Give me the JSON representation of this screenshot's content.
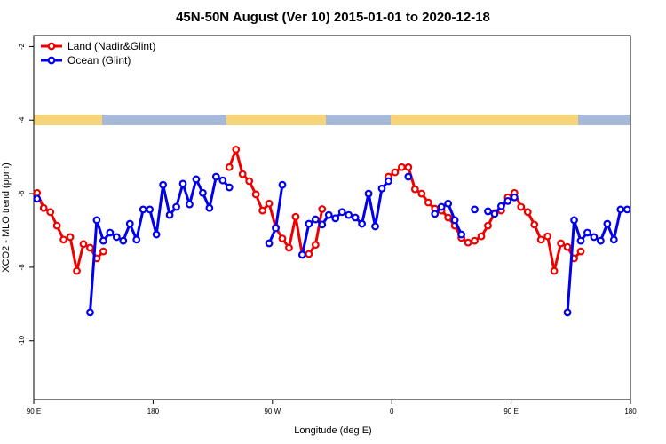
{
  "chart_data": {
    "type": "line",
    "title": "45N-50N August (Ver 10)   2015-01-01 to 2020-12-18",
    "x_label": "Longitude (deg E)",
    "y_label": "XCO2 - MLO trend (ppm)",
    "xlim": [
      90,
      540
    ],
    "xticks": [
      {
        "value": 90,
        "label": "90 E"
      },
      180,
      {
        "value": 270,
        "label": "90 W"
      },
      {
        "value": 360,
        "label": "0"
      },
      {
        "value": 450,
        "label": "90 E"
      },
      {
        "value": 540,
        "label": "180"
      }
    ],
    "ylim": [
      -11.6,
      -1.7
    ],
    "yticks": [
      -2,
      -4,
      -6,
      -8,
      -10
    ],
    "legend": "upper left",
    "x": [
      92.5,
      97.5,
      102.5,
      107.5,
      112.5,
      117.5,
      122.5,
      127.5,
      132.5,
      137.5,
      142.5,
      147.5,
      152.5,
      157.5,
      162.5,
      167.5,
      172.5,
      177.5,
      182.5,
      187.5,
      192.5,
      197.5,
      202.5,
      207.5,
      212.5,
      217.5,
      222.5,
      227.5,
      232.5,
      237.5,
      242.5,
      247.5,
      252.5,
      257.5,
      262.5,
      267.5,
      272.5,
      277.5,
      282.5,
      287.5,
      292.5,
      297.5,
      302.5,
      307.5,
      312.5,
      317.5,
      322.5,
      327.5,
      332.5,
      337.5,
      342.5,
      347.5,
      352.5,
      357.5,
      362.5,
      367.5,
      372.5,
      377.5,
      382.5,
      387.5,
      392.5,
      397.5,
      402.5,
      407.5,
      412.5,
      417.5,
      422.5,
      427.5,
      432.5,
      437.5,
      442.5,
      447.5,
      452.5,
      457.5,
      462.5,
      467.5,
      472.5,
      477.5,
      482.5,
      487.5,
      492.5,
      497.5,
      502.5,
      507.5,
      512.5,
      517.5,
      522.5,
      527.5,
      532.5,
      537.5
    ],
    "series": [
      {
        "name": "Land (Nadir&Glint)",
        "color": "#ee0000",
        "values": [
          -5.98,
          -6.39,
          -6.5,
          -6.87,
          -7.25,
          -7.18,
          -8.1,
          -7.37,
          -7.47,
          -7.76,
          -7.57,
          null,
          null,
          null,
          null,
          null,
          null,
          null,
          null,
          null,
          null,
          null,
          null,
          null,
          null,
          null,
          null,
          null,
          null,
          -5.28,
          -4.8,
          -5.47,
          -5.66,
          -6.02,
          -6.46,
          -6.27,
          -6.92,
          -7.22,
          -7.47,
          -6.63,
          -7.66,
          -7.64,
          -7.39,
          -6.42,
          null,
          null,
          null,
          null,
          null,
          null,
          null,
          null,
          null,
          -5.54,
          -5.42,
          -5.28,
          -5.28,
          -5.88,
          -6.0,
          -6.24,
          -6.41,
          -6.46,
          -6.65,
          -6.87,
          -7.2,
          -7.33,
          -7.28,
          -7.16,
          -6.87,
          -6.53,
          -6.46,
          -6.1,
          -5.98,
          -6.36,
          -6.5,
          -6.84,
          -7.25,
          -7.16,
          -8.1,
          -7.35,
          -7.45,
          -7.76,
          -7.57,
          null,
          null,
          null,
          null,
          null,
          null,
          null
        ]
      },
      {
        "name": "Ocean (Glint)",
        "color": "#0000ee",
        "values": [
          -6.14,
          null,
          null,
          null,
          null,
          null,
          null,
          null,
          -9.23,
          -6.72,
          -7.28,
          -7.06,
          -7.18,
          -7.28,
          -6.82,
          -7.25,
          -6.43,
          -6.43,
          -7.11,
          -5.76,
          -6.58,
          -6.36,
          -5.73,
          -6.29,
          -5.61,
          -5.98,
          -6.39,
          -5.54,
          -5.64,
          -5.83,
          null,
          null,
          null,
          null,
          null,
          -7.35,
          -6.94,
          -5.76,
          null,
          null,
          -7.66,
          -6.82,
          -6.7,
          -6.84,
          -6.58,
          -6.67,
          -6.5,
          -6.58,
          -6.65,
          -6.82,
          -6.0,
          -6.89,
          -5.86,
          -5.66,
          null,
          null,
          -5.54,
          null,
          null,
          null,
          -6.55,
          -6.36,
          -6.27,
          -6.72,
          -7.11,
          null,
          -6.43,
          null,
          -6.48,
          -6.55,
          -6.34,
          -6.2,
          -6.1,
          null,
          null,
          null,
          null,
          null,
          null,
          null,
          -9.23,
          -6.72,
          -7.28,
          -7.06,
          -7.18,
          -7.28,
          -6.82,
          -7.25,
          -6.43,
          -6.43
        ]
      }
    ]
  }
}
